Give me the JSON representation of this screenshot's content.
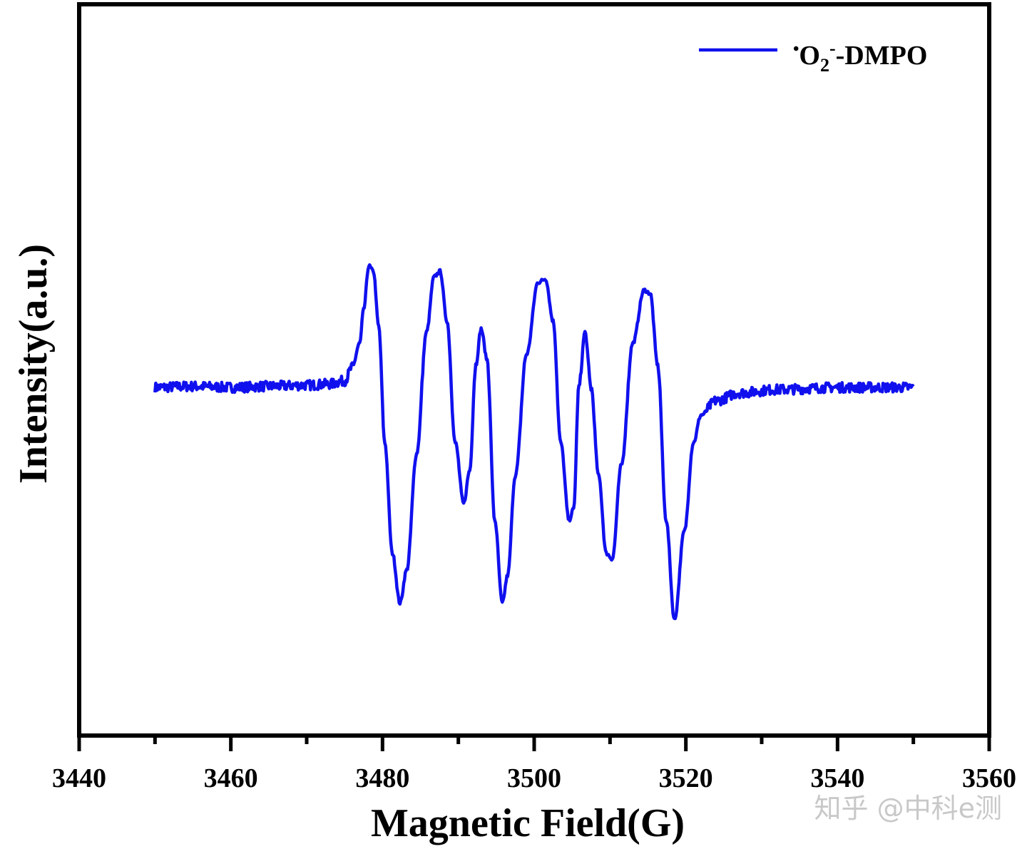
{
  "chart_data": {
    "type": "line",
    "xlabel": "Magnetic Field(G)",
    "ylabel": "Intensity(a.u.)",
    "xlim": [
      3440,
      3560
    ],
    "x_ticks": [
      "3440",
      "3460",
      "3480",
      "3500",
      "3520",
      "3540",
      "3560"
    ],
    "y_ticks_labeled": false,
    "grid": false,
    "legend_position": "top-right",
    "legend": {
      "superscript_dot": "•",
      "main": "O",
      "subscript": "2",
      "superscript_minus": "-",
      "suffix": "-DMPO"
    },
    "series": [
      {
        "name": "•O2−-DMPO",
        "color": "#1010ee",
        "x": [
          3450,
          3455,
          3460,
          3465,
          3470,
          3473,
          3475,
          3476,
          3477,
          3477.5,
          3478.2,
          3478.8,
          3479.5,
          3480.3,
          3481.3,
          3482.3,
          3483.2,
          3484.5,
          3485.8,
          3486.8,
          3487.6,
          3488.5,
          3489.6,
          3490.7,
          3491.5,
          3492.3,
          3493.0,
          3493.8,
          3494.8,
          3495.8,
          3496.5,
          3497.5,
          3499.0,
          3500.5,
          3501.5,
          3502.5,
          3503.5,
          3504.6,
          3505.2,
          3505.9,
          3506.7,
          3507.5,
          3508.5,
          3509.5,
          3510.3,
          3511.5,
          3513.0,
          3514.5,
          3515.3,
          3516.3,
          3517.4,
          3518.5,
          3519.8,
          3521.0,
          3522.0,
          3524.0,
          3527.0,
          3532.0,
          3540.0,
          3550.0
        ],
        "y": [
          0,
          0.01,
          0,
          0.01,
          0.02,
          0.03,
          0.06,
          0.18,
          0.4,
          0.7,
          1.1,
          1.05,
          0.55,
          -0.5,
          -1.5,
          -1.95,
          -1.65,
          -0.6,
          0.5,
          1.0,
          1.05,
          0.6,
          -0.5,
          -1.05,
          -0.75,
          0.2,
          0.53,
          0.25,
          -1.2,
          -1.95,
          -1.7,
          -0.8,
          0.3,
          0.95,
          0.98,
          0.6,
          -0.5,
          -1.2,
          -1.1,
          0.0,
          0.5,
          0.0,
          -0.8,
          -1.5,
          -1.55,
          -0.7,
          0.4,
          0.88,
          0.85,
          0.2,
          -1.2,
          -2.1,
          -1.3,
          -0.5,
          -0.25,
          -0.12,
          -0.05,
          -0.02,
          0,
          0
        ]
      }
    ]
  },
  "watermark": "知乎 @中科e测"
}
